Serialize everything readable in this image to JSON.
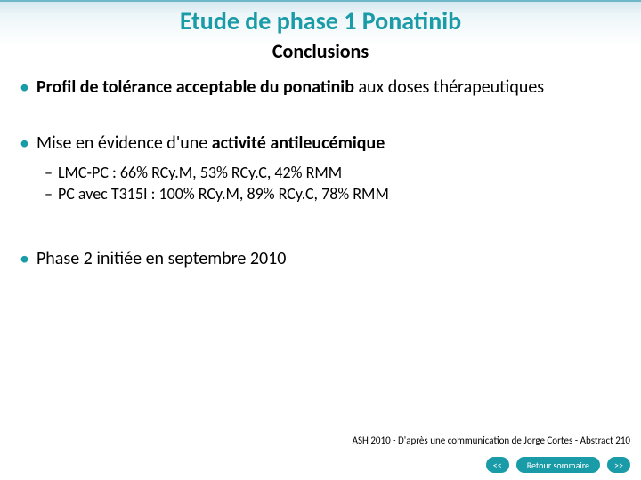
{
  "colors": {
    "accent": "#1a9ba8",
    "header_gradient_top": "#d4e8ef",
    "header_gradient_mid": "#eef6f9",
    "header_border": "#6fb8c9",
    "text": "#000000",
    "nav_bg": "#1a9ba8",
    "nav_text": "#ffffff",
    "background": "#ffffff"
  },
  "typography": {
    "title_fontsize": 28,
    "subtitle_fontsize": 22,
    "body_fontsize": 20,
    "sub_fontsize": 18,
    "citation_fontsize": 11,
    "nav_fontsize": 10,
    "font_family": "Calibri"
  },
  "title": "Etude de phase 1 Ponatinib",
  "subtitle": "Conclusions",
  "bullets": {
    "b1": {
      "bold_part": "Profil de tolérance acceptable du ponatinib",
      "rest": " aux doses thérapeutiques"
    },
    "b2": {
      "prefix": "Mise en évidence d'une ",
      "bold_part": "activité antileucémique",
      "subs": {
        "s1": "LMC-PC : 66% RCy.M, 53% RCy.C, 42% RMM",
        "s2": "PC avec T315I : 100% RCy.M, 89% RCy.C, 78% RMM"
      }
    },
    "b3": {
      "text": "Phase 2 initiée en septembre 2010"
    }
  },
  "citation": "ASH 2010 - D'après une communication de Jorge Cortes - Abstract 210",
  "nav": {
    "prev": "<<",
    "summary": "Retour sommaire",
    "next": ">>"
  }
}
